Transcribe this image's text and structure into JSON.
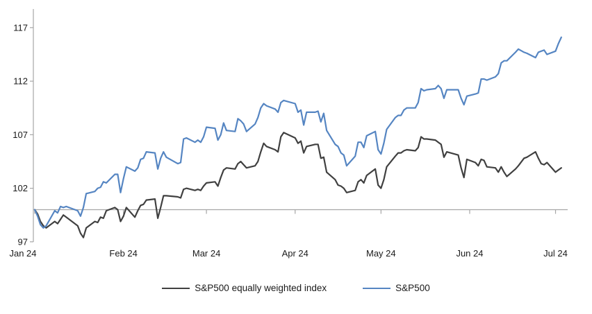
{
  "chart_data": {
    "type": "line",
    "title": "",
    "x_label": "",
    "y_label": "",
    "y_ticks": [
      97,
      102,
      107,
      112,
      117
    ],
    "y_range": [
      97,
      117
    ],
    "baseline_value": 100,
    "grid": "baseline-only",
    "x_tick_labels": [
      "Jan 24",
      "Feb 24",
      "Mar 24",
      "Apr 24",
      "May 24",
      "Jun 24",
      "Jul 24"
    ],
    "x_tick_months": [
      1,
      2,
      3,
      4,
      5,
      6,
      7
    ],
    "x": [
      "01-01",
      "01-02",
      "01-03",
      "01-04",
      "01-05",
      "01-08",
      "01-09",
      "01-10",
      "01-11",
      "01-12",
      "01-16",
      "01-17",
      "01-18",
      "01-19",
      "01-22",
      "01-23",
      "01-24",
      "01-25",
      "01-26",
      "01-29",
      "01-30",
      "01-31",
      "02-01",
      "02-02",
      "02-05",
      "02-06",
      "02-07",
      "02-08",
      "02-09",
      "02-12",
      "02-13",
      "02-14",
      "02-15",
      "02-16",
      "02-20",
      "02-21",
      "02-22",
      "02-23",
      "02-26",
      "02-27",
      "02-28",
      "02-29",
      "03-01",
      "03-04",
      "03-05",
      "03-06",
      "03-07",
      "03-08",
      "03-11",
      "03-12",
      "03-13",
      "03-14",
      "03-15",
      "03-18",
      "03-19",
      "03-20",
      "03-21",
      "03-22",
      "03-25",
      "03-26",
      "03-27",
      "03-28",
      "04-01",
      "04-02",
      "04-03",
      "04-04",
      "04-05",
      "04-08",
      "04-09",
      "04-10",
      "04-11",
      "04-12",
      "04-15",
      "04-16",
      "04-17",
      "04-18",
      "04-19",
      "04-22",
      "04-23",
      "04-24",
      "04-25",
      "04-26",
      "04-29",
      "04-30",
      "05-01",
      "05-02",
      "05-03",
      "05-06",
      "05-07",
      "05-08",
      "05-09",
      "05-10",
      "05-13",
      "05-14",
      "05-15",
      "05-16",
      "05-17",
      "05-20",
      "05-21",
      "05-22",
      "05-23",
      "05-24",
      "05-28",
      "05-29",
      "05-30",
      "05-31",
      "06-03",
      "06-04",
      "06-05",
      "06-06",
      "06-07",
      "06-10",
      "06-11",
      "06-12",
      "06-13",
      "06-14",
      "06-17",
      "06-18",
      "06-20",
      "06-21",
      "06-24",
      "06-25",
      "06-26",
      "06-27",
      "06-28",
      "07-01",
      "07-02",
      "07-03"
    ],
    "series": [
      {
        "name": "S&P500 equally weighted index",
        "color": "#404040",
        "values": [
          100.0,
          99.6,
          98.9,
          98.5,
          98.3,
          98.9,
          98.7,
          99.1,
          99.5,
          99.3,
          98.5,
          97.8,
          97.4,
          98.3,
          98.9,
          98.8,
          99.3,
          99.2,
          99.9,
          100.2,
          100.0,
          98.9,
          99.4,
          100.2,
          99.3,
          99.9,
          100.4,
          100.5,
          100.9,
          101.0,
          99.2,
          100.2,
          101.3,
          101.3,
          101.2,
          101.1,
          101.9,
          102.0,
          101.8,
          101.9,
          101.8,
          102.2,
          102.5,
          102.6,
          102.2,
          103.0,
          103.7,
          103.9,
          103.8,
          104.3,
          104.5,
          104.2,
          103.9,
          104.1,
          104.5,
          105.4,
          106.2,
          105.9,
          105.6,
          105.4,
          106.8,
          107.2,
          106.7,
          106.2,
          106.4,
          105.3,
          105.9,
          106.1,
          106.1,
          104.8,
          104.9,
          103.5,
          102.8,
          102.3,
          102.2,
          102.0,
          101.6,
          101.8,
          102.6,
          102.8,
          102.5,
          103.2,
          103.8,
          102.3,
          102.0,
          102.8,
          104.0,
          105.0,
          105.3,
          105.3,
          105.5,
          105.6,
          105.5,
          105.8,
          106.8,
          106.6,
          106.6,
          106.5,
          106.3,
          106.1,
          104.9,
          105.4,
          105.1,
          103.9,
          103.0,
          104.7,
          104.4,
          104.1,
          104.7,
          104.6,
          104.0,
          103.9,
          103.5,
          104.0,
          103.5,
          103.1,
          103.8,
          104.1,
          104.8,
          104.9,
          105.4,
          104.8,
          104.3,
          104.2,
          104.4,
          103.5,
          103.7,
          103.9
        ]
      },
      {
        "name": "S&P500",
        "color": "#5585c2",
        "values": [
          100.0,
          99.4,
          98.6,
          98.3,
          98.5,
          99.9,
          99.7,
          100.3,
          100.2,
          100.3,
          99.9,
          99.4,
          100.2,
          101.5,
          101.7,
          102.0,
          102.1,
          102.6,
          102.5,
          103.3,
          103.3,
          101.6,
          102.9,
          104.0,
          103.6,
          103.9,
          104.7,
          104.8,
          105.4,
          105.3,
          103.8,
          104.8,
          105.4,
          104.9,
          104.3,
          104.4,
          106.6,
          106.7,
          106.3,
          106.5,
          106.3,
          106.8,
          107.7,
          107.6,
          106.5,
          107.0,
          108.1,
          107.4,
          107.3,
          108.5,
          108.3,
          108.0,
          107.3,
          108.0,
          108.6,
          109.5,
          109.9,
          109.7,
          109.4,
          109.1,
          110.0,
          110.2,
          109.9,
          109.1,
          109.3,
          107.9,
          109.1,
          109.1,
          109.2,
          108.2,
          109.0,
          107.4,
          106.1,
          105.9,
          105.3,
          105.1,
          104.1,
          105.0,
          106.3,
          106.3,
          105.8,
          106.9,
          107.3,
          105.6,
          105.2,
          106.2,
          107.5,
          108.6,
          108.8,
          108.8,
          109.3,
          109.5,
          109.5,
          110.0,
          111.3,
          111.1,
          111.2,
          111.3,
          111.6,
          111.3,
          110.4,
          111.2,
          111.2,
          110.4,
          109.8,
          110.6,
          110.8,
          110.9,
          112.2,
          112.2,
          112.1,
          112.4,
          112.7,
          113.7,
          113.9,
          113.9,
          114.7,
          115.0,
          114.7,
          114.6,
          114.2,
          114.7,
          114.8,
          114.9,
          114.5,
          114.8,
          115.5,
          116.1
        ]
      }
    ],
    "legend_position": "bottom-center",
    "axis_color": "#a6a6a6",
    "tick_label_color": "#1a1a1a"
  },
  "legend": {
    "items": [
      {
        "label": "S&P500 equally weighted index",
        "color": "#404040"
      },
      {
        "label": "S&P500",
        "color": "#5585c2"
      }
    ]
  }
}
